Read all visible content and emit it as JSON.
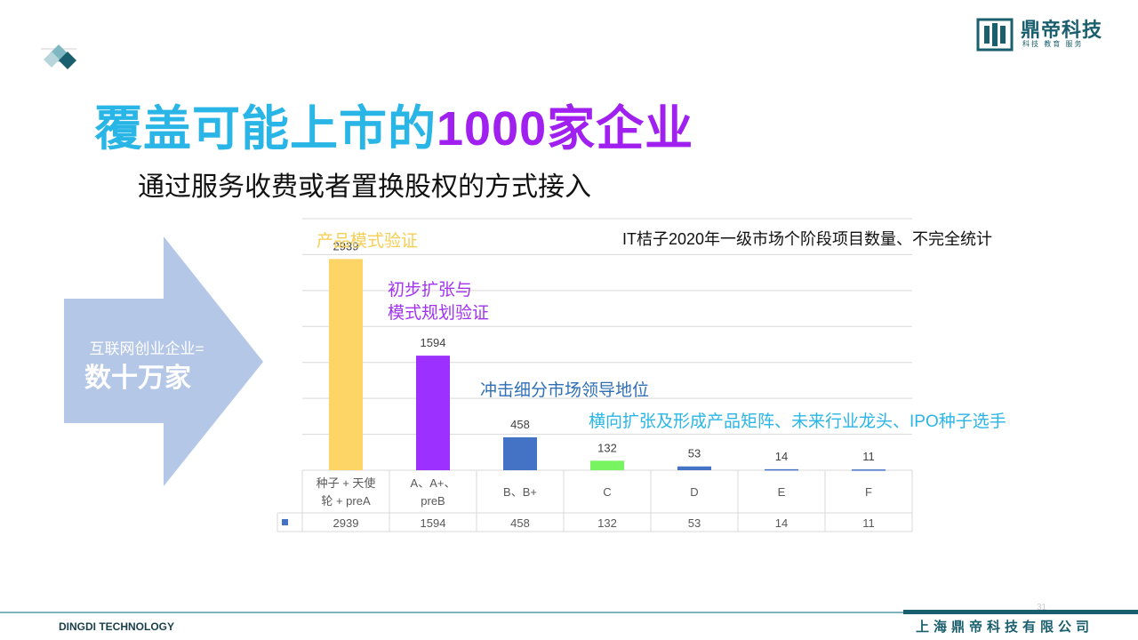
{
  "title": {
    "part1": "覆盖可能上市的",
    "part2": "1000家企业"
  },
  "subtitle": "通过服务收费或者置换股权的方式接入",
  "logo": {
    "name": "鼎帝科技",
    "sub": "科技 教育 服务"
  },
  "arrow": {
    "line1": "互联网创业企业=",
    "line2": "数十万家"
  },
  "annotations": {
    "seed": "产品模式验证",
    "a_line1": "初步扩张与",
    "a_line2": "模式规划验证",
    "b": "冲击细分市场领导地位",
    "c": "横向扩张及形成产品矩阵、未来行业龙头、IPO种子选手"
  },
  "source": "IT桔子2020年一级市场个阶段项目数量、不完全统计",
  "chart_data": {
    "type": "bar",
    "categories": [
      "种子 + 天使轮 + preA",
      "A、A+、preB",
      "B、B+",
      "C",
      "D",
      "E",
      "F"
    ],
    "category_lines": [
      [
        "种子 + 天使",
        "轮 + preA"
      ],
      [
        "A、A+、",
        "preB"
      ],
      [
        "B、B+"
      ],
      [
        "C"
      ],
      [
        "D"
      ],
      [
        "E"
      ],
      [
        "F"
      ]
    ],
    "values": [
      2939,
      1594,
      458,
      132,
      53,
      14,
      11
    ],
    "data_labels": [
      "2939",
      "1594",
      "458",
      "132",
      "53",
      "14",
      "11"
    ],
    "colors": [
      "#fdd567",
      "#9b30ff",
      "#4472c4",
      "#77f45f",
      "#4472c4",
      "#4472c4",
      "#4472c4"
    ],
    "legend_color": "#4472c4",
    "ylim": [
      0,
      3500
    ],
    "grid": true,
    "data_table": true
  },
  "footer": {
    "left": "DINGDI TECHNOLOGY",
    "right": "上海鼎帝科技有限公司",
    "page": "31"
  }
}
